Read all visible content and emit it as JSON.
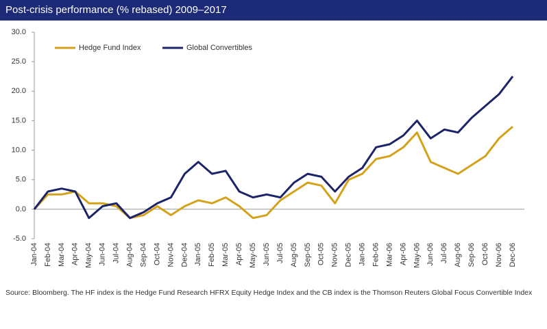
{
  "chart_data": {
    "type": "line",
    "title": "Post-crisis performance (% rebased) 2009–2017",
    "source": "Source: Bloomberg. The HF index is the Hedge Fund Research HFRX Equity Hedge Index and the CB index is the Thomson Reuters Global Focus Convertible Index",
    "categories": [
      "Jan-04",
      "Feb-04",
      "Mar-04",
      "Apr-04",
      "May-04",
      "Jun-04",
      "Jul-04",
      "Aug-04",
      "Sep-04",
      "Oct-04",
      "Nov-04",
      "Dec-04",
      "Jan-05",
      "Feb-05",
      "Mar-05",
      "Apr-05",
      "May-05",
      "Jun-05",
      "Jul-05",
      "Aug-05",
      "Sep-05",
      "Oct-05",
      "Nov-05",
      "Dec-05",
      "Jan-06",
      "Feb-06",
      "Mar-06",
      "Apr-06",
      "May-06",
      "Jun-06",
      "Jul-06",
      "Aug-06",
      "Sep-06",
      "Oct-06",
      "Nov-06",
      "Dec-06"
    ],
    "series": [
      {
        "name": "Hedge Fund Index",
        "color": "#d4a21a",
        "values": [
          0,
          2.5,
          2.5,
          3,
          1,
          1,
          0.5,
          -1.5,
          -1,
          0.5,
          -1,
          0.5,
          1.5,
          1,
          2,
          0.5,
          -1.5,
          -1,
          1.5,
          3,
          4.5,
          4,
          1,
          5,
          6,
          8.5,
          9,
          10.5,
          13,
          8,
          7,
          6,
          7.5,
          9,
          12,
          14
        ]
      },
      {
        "name": "Global Convertibles",
        "color": "#1c2469",
        "values": [
          0,
          3,
          3.5,
          3,
          -1.5,
          0.5,
          1,
          -1.5,
          -0.5,
          1,
          2,
          6,
          8,
          6,
          6.5,
          3,
          2,
          2.5,
          2,
          4.5,
          6,
          5.5,
          3,
          5.5,
          7,
          10.5,
          11,
          12.5,
          15,
          12,
          13.5,
          13,
          15.5,
          17.5,
          19.5,
          22.5
        ]
      }
    ],
    "ylim": [
      -5,
      30
    ],
    "yticks": [
      {
        "value": -5,
        "label": "-5.0"
      },
      {
        "value": 0,
        "label": "0.0"
      },
      {
        "value": 5,
        "label": "5.0"
      },
      {
        "value": 10,
        "label": "10.0"
      },
      {
        "value": 15,
        "label": "15.0"
      },
      {
        "value": 20,
        "label": "20.0"
      },
      {
        "value": 25,
        "label": "25.0"
      },
      {
        "value": 30,
        "label": "30.0"
      }
    ],
    "grid": false,
    "legend": "upper left"
  }
}
